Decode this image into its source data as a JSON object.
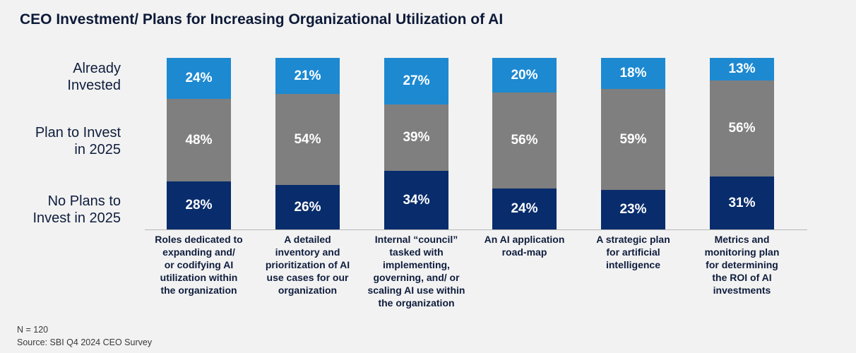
{
  "chart_data": {
    "type": "bar",
    "stacked": true,
    "title": "CEO Investment/ Plans for Increasing Organizational Utilization of AI",
    "categories": [
      "Roles dedicated to\nexpanding and/\nor codifying AI\nutilization within\nthe organization",
      "A detailed\ninventory and\nprioritization of AI\nuse cases for our\norganization",
      "Internal “council”\ntasked with\nimplementing,\ngoverning, and/ or\nscaling AI use within\nthe organization",
      "An AI application\nroad-map",
      "A strategic plan\nfor artificial\nintelligence",
      "Metrics and\nmonitoring plan\nfor determining\nthe ROI of AI\ninvestments"
    ],
    "series": [
      {
        "name": "Already\nInvested",
        "values": [
          24,
          21,
          27,
          20,
          18,
          13
        ],
        "color": "#1d89d1"
      },
      {
        "name": "Plan to Invest\nin 2025",
        "values": [
          48,
          54,
          39,
          56,
          59,
          56
        ],
        "color": "#7f7f7f"
      },
      {
        "name": "No Plans to\nInvest in 2025",
        "values": [
          28,
          26,
          34,
          24,
          23,
          31
        ],
        "color": "#082c6c"
      }
    ],
    "unit": "%",
    "ylim": [
      0,
      100
    ],
    "grid": false,
    "legend_position": "left",
    "data_label_color": "#ffffff"
  },
  "footer": {
    "sample_size": "N = 120",
    "source": "Source: SBI Q4 2024 CEO Survey"
  }
}
